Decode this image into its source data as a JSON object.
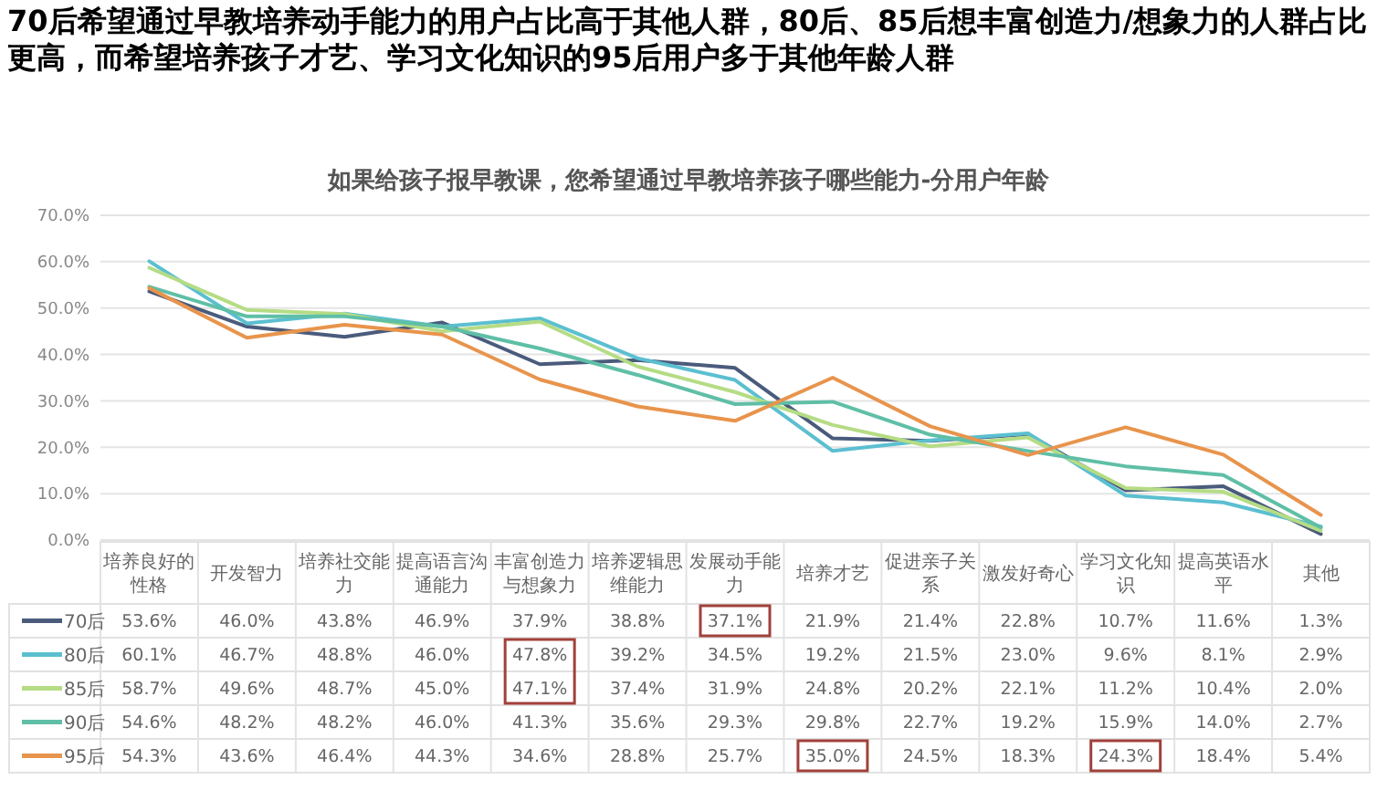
{
  "chart_data": {
    "type": "line",
    "title": "70后希望通过早教培养动手能力的用户占比高于其他人群，80后、85后想丰富创造力/想象力的人群占比更高，而希望培养孩子才艺、学习文化知识的95后用户多于其他年龄人群",
    "subtitle": "如果给孩子报早教课，您希望通过早教培养孩子哪些能力-分用户年龄",
    "categories": [
      "培养良好的性格",
      "开发智力",
      "培养社交能力",
      "提高语言沟通能力",
      "丰富创造力与想象力",
      "培养逻辑思维能力",
      "发展动手能力",
      "培养才艺",
      "促进亲子关系",
      "激发好奇心",
      "学习文化知识",
      "提高英语水平",
      "其他"
    ],
    "series": [
      {
        "name": "70后",
        "color": "#4a5b7c",
        "values": [
          53.6,
          46.0,
          43.8,
          46.9,
          37.9,
          38.8,
          37.1,
          21.9,
          21.4,
          22.8,
          10.7,
          11.6,
          1.3
        ],
        "value_labels": [
          "53.6%",
          "46.0%",
          "43.8%",
          "46.9%",
          "37.9%",
          "38.8%",
          "37.1%",
          "21.9%",
          "21.4%",
          "22.8%",
          "10.7%",
          "11.6%",
          "1.3%"
        ]
      },
      {
        "name": "80后",
        "color": "#5bbfd0",
        "values": [
          60.1,
          46.7,
          48.8,
          46.0,
          47.8,
          39.2,
          34.5,
          19.2,
          21.5,
          23.0,
          9.6,
          8.1,
          2.9
        ],
        "value_labels": [
          "60.1%",
          "46.7%",
          "48.8%",
          "46.0%",
          "47.8%",
          "39.2%",
          "34.5%",
          "19.2%",
          "21.5%",
          "23.0%",
          "9.6%",
          "8.1%",
          "2.9%"
        ]
      },
      {
        "name": "85后",
        "color": "#b5dc84",
        "values": [
          58.7,
          49.6,
          48.7,
          45.0,
          47.1,
          37.4,
          31.9,
          24.8,
          20.2,
          22.1,
          11.2,
          10.4,
          2.0
        ],
        "value_labels": [
          "58.7%",
          "49.6%",
          "48.7%",
          "45.0%",
          "47.1%",
          "37.4%",
          "31.9%",
          "24.8%",
          "20.2%",
          "22.1%",
          "11.2%",
          "10.4%",
          "2.0%"
        ]
      },
      {
        "name": "90后",
        "color": "#5fbfa6",
        "values": [
          54.6,
          48.2,
          48.2,
          46.0,
          41.3,
          35.6,
          29.3,
          29.8,
          22.7,
          19.2,
          15.9,
          14.0,
          2.7
        ],
        "value_labels": [
          "54.6%",
          "48.2%",
          "48.2%",
          "46.0%",
          "41.3%",
          "35.6%",
          "29.3%",
          "29.8%",
          "22.7%",
          "19.2%",
          "15.9%",
          "14.0%",
          "2.7%"
        ]
      },
      {
        "name": "95后",
        "color": "#e8944c",
        "values": [
          54.3,
          43.6,
          46.4,
          44.3,
          34.6,
          28.8,
          25.7,
          35.0,
          24.5,
          18.3,
          24.3,
          18.4,
          5.4
        ],
        "value_labels": [
          "54.3%",
          "43.6%",
          "46.4%",
          "44.3%",
          "34.6%",
          "28.8%",
          "25.7%",
          "35.0%",
          "24.5%",
          "18.3%",
          "24.3%",
          "18.4%",
          "5.4%"
        ]
      }
    ],
    "ylim": [
      0,
      70
    ],
    "yticks": [
      {
        "value": 0,
        "label": "0.0%"
      },
      {
        "value": 10,
        "label": "10.0%"
      },
      {
        "value": 20,
        "label": "20.0%"
      },
      {
        "value": 30,
        "label": "30.0%"
      },
      {
        "value": 40,
        "label": "40.0%"
      },
      {
        "value": 50,
        "label": "50.0%"
      },
      {
        "value": 60,
        "label": "60.0%"
      },
      {
        "value": 70,
        "label": "70.0%"
      }
    ],
    "grid": "y",
    "legend": "bottom",
    "tick_labels": "y",
    "marker": "none",
    "line_style": "solid"
  }
}
